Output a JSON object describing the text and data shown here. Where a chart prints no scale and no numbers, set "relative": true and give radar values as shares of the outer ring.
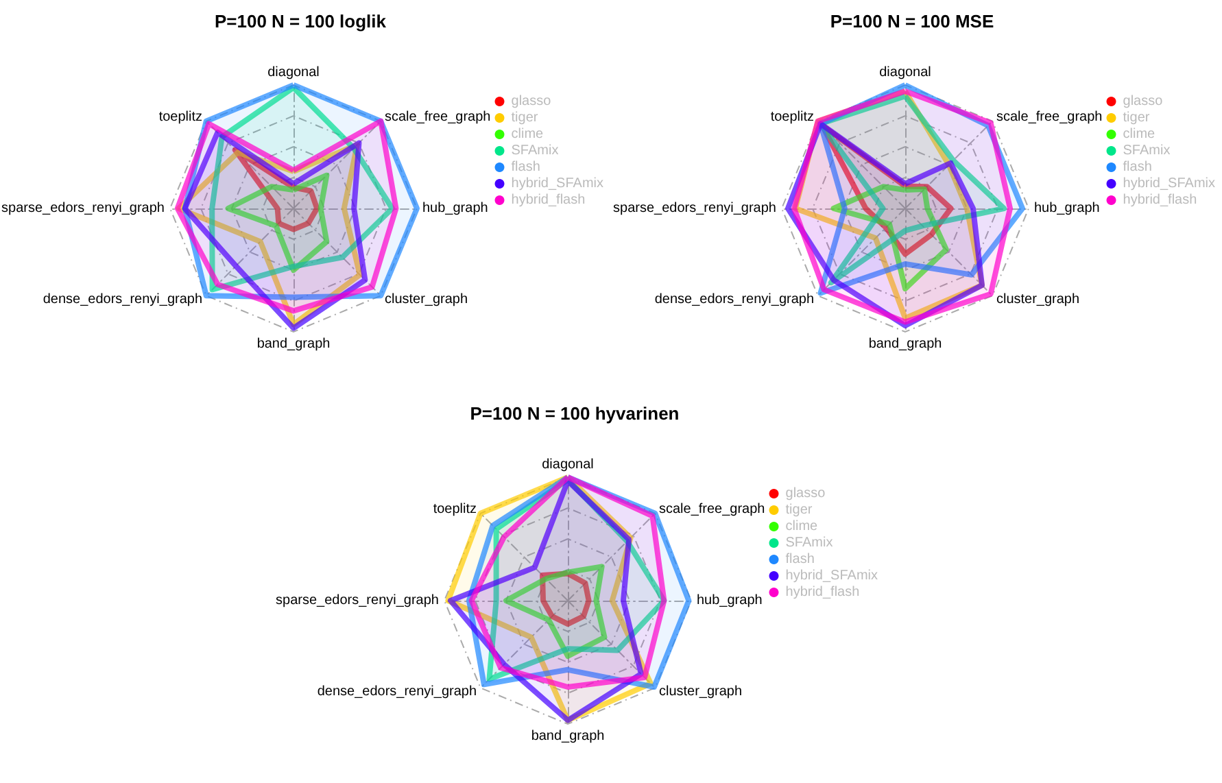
{
  "chart_data": [
    {
      "type": "radar",
      "title": "P=100 N = 100 loglik",
      "relative": true,
      "grid": true,
      "legend": "right",
      "categories": [
        "diagonal",
        "scale_free_graph",
        "hub_graph",
        "cluster_graph",
        "band_graph",
        "dense_edors_renyi_graph",
        "sparse_edors_renyi_graph",
        "toeplitz"
      ],
      "series": [
        {
          "name": "glasso",
          "color": "#ff0000",
          "values": [
            0.17,
            0.2,
            0.19,
            0.17,
            0.17,
            0.17,
            0.13,
            0.67
          ]
        },
        {
          "name": "tiger",
          "color": "#ffcc00",
          "values": [
            0.3,
            0.73,
            0.41,
            0.76,
            0.94,
            0.38,
            0.93,
            0.64
          ]
        },
        {
          "name": "clime",
          "color": "#33ff00",
          "values": [
            0.15,
            0.38,
            0.22,
            0.38,
            0.5,
            0.2,
            0.53,
            0.25
          ]
        },
        {
          "name": "SFAmix",
          "color": "#00e68a",
          "values": [
            0.98,
            0.69,
            0.8,
            0.56,
            0.47,
            0.93,
            0.66,
            0.82
          ]
        },
        {
          "name": "flash",
          "color": "#1e88ff",
          "values": [
            1,
            1,
            1,
            1,
            0.72,
            1,
            0.88,
            1
          ]
        },
        {
          "name": "hybrid_SFAmix",
          "color": "#4400ff",
          "values": [
            0.2,
            0.75,
            0.49,
            0.82,
            0.97,
            0.66,
            0.88,
            0.87
          ]
        },
        {
          "name": "hybrid_flash",
          "color": "#ff00cc",
          "values": [
            0.31,
            1,
            0.83,
            0.9,
            0.83,
            0.87,
            0.94,
            0.97
          ]
        }
      ]
    },
    {
      "type": "radar",
      "title": "P=100 N = 100 MSE",
      "relative": true,
      "grid": true,
      "legend": "right",
      "categories": [
        "diagonal",
        "scale_free_graph",
        "hub_graph",
        "cluster_graph",
        "band_graph",
        "dense_edors_renyi_graph",
        "sparse_edors_renyi_graph",
        "toeplitz"
      ],
      "series": [
        {
          "name": "glasso",
          "color": "#ff0000",
          "values": [
            0.18,
            0.25,
            0.37,
            0.3,
            0.37,
            0.22,
            0.32,
            0.95
          ]
        },
        {
          "name": "tiger",
          "color": "#ffcc00",
          "values": [
            0.95,
            0.5,
            0.5,
            0.88,
            0.89,
            0.34,
            0.89,
            1
          ]
        },
        {
          "name": "clime",
          "color": "#33ff00",
          "values": [
            0.15,
            0.22,
            0.18,
            0.47,
            0.65,
            0.18,
            0.58,
            0.25
          ]
        },
        {
          "name": "SFAmix",
          "color": "#00e68a",
          "values": [
            0.91,
            0.55,
            0.8,
            0.2,
            0.18,
            0.85,
            0.18,
            0.97
          ]
        },
        {
          "name": "flash",
          "color": "#1e88ff",
          "values": [
            1,
            0.95,
            0.95,
            0.76,
            0.45,
            0.97,
            0.49,
            0.97
          ]
        },
        {
          "name": "hybrid_SFAmix",
          "color": "#4400ff",
          "values": [
            0.2,
            0.52,
            0.55,
            0.88,
            0.95,
            0.82,
            0.95,
            0.97
          ]
        },
        {
          "name": "hybrid_flash",
          "color": "#ff00cc",
          "values": [
            0.95,
            0.98,
            0.85,
            0.98,
            0.92,
            0.93,
            0.9,
            1
          ]
        }
      ]
    },
    {
      "type": "radar",
      "title": "P=100 N = 100 hyvarinen",
      "relative": true,
      "grid": true,
      "legend": "right",
      "categories": [
        "diagonal",
        "scale_free_graph",
        "hub_graph",
        "cluster_graph",
        "band_graph",
        "dense_edors_renyi_graph",
        "sparse_edors_renyi_graph",
        "toeplitz"
      ],
      "series": [
        {
          "name": "glasso",
          "color": "#ff0000",
          "values": [
            0.22,
            0.2,
            0.17,
            0.18,
            0.19,
            0.18,
            0.2,
            0.29
          ]
        },
        {
          "name": "tiger",
          "color": "#ffcc00",
          "values": [
            1,
            0.72,
            0.36,
            0.95,
            0.97,
            0.42,
            0.97,
            1
          ]
        },
        {
          "name": "clime",
          "color": "#33ff00",
          "values": [
            0.23,
            0.39,
            0.23,
            0.42,
            0.45,
            0.22,
            0.5,
            0.25
          ]
        },
        {
          "name": "SFAmix",
          "color": "#00e68a",
          "values": [
            0.98,
            0.68,
            0.78,
            0.57,
            0.39,
            0.9,
            0.58,
            0.82
          ]
        },
        {
          "name": "flash",
          "color": "#1e88ff",
          "values": [
            1,
            1,
            0.98,
            0.99,
            0.56,
            0.96,
            0.8,
            0.86
          ]
        },
        {
          "name": "hybrid_SFAmix",
          "color": "#4400ff",
          "values": [
            0.97,
            0.7,
            0.45,
            0.84,
            0.97,
            0.73,
            0.95,
            0.38
          ]
        },
        {
          "name": "hybrid_flash",
          "color": "#ff00cc",
          "values": [
            1,
            0.97,
            0.78,
            0.88,
            0.7,
            0.77,
            0.78,
            0.73
          ]
        }
      ]
    }
  ]
}
